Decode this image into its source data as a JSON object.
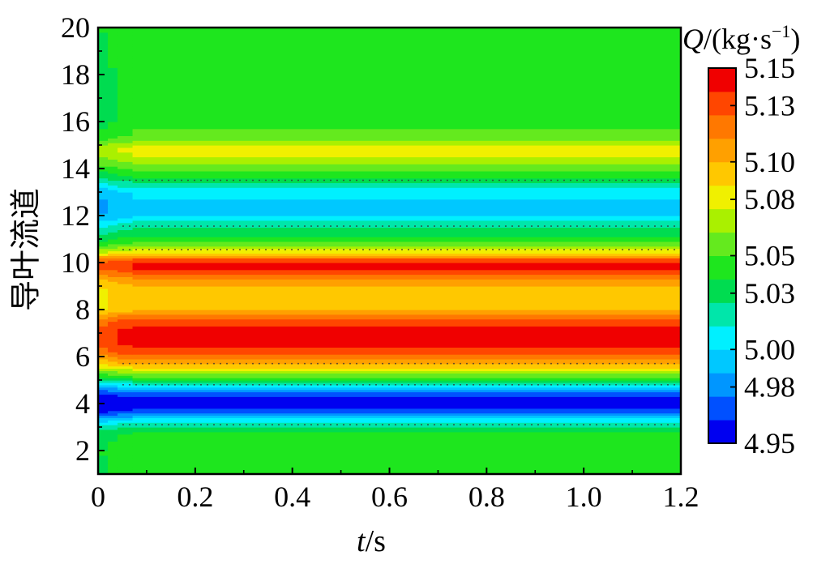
{
  "chart_data": {
    "type": "heatmap",
    "xlabel_var": "t",
    "xlabel_unit": "/s",
    "ylabel": "导叶流道",
    "xlim": [
      0,
      1.2
    ],
    "ylim": [
      1,
      20
    ],
    "x_ticks": [
      "0",
      "0.2",
      "0.4",
      "0.6",
      "0.8",
      "1.0",
      "1.2"
    ],
    "y_ticks": [
      "2",
      "4",
      "6",
      "8",
      "10",
      "12",
      "14",
      "16",
      "18",
      "20"
    ],
    "colorbar": {
      "title_var": "Q",
      "title_unit": "/(kg·s",
      "title_sup": "−1",
      "title_close": ")",
      "tick_labels": [
        "5.15",
        "5.13",
        "5.10",
        "5.08",
        "5.05",
        "5.03",
        "5.00",
        "4.98",
        "4.95"
      ],
      "min": 4.95,
      "max": 5.15,
      "levels": [
        {
          "value": 4.955,
          "color": "#0000f0"
        },
        {
          "value": 4.97,
          "color": "#0050ff"
        },
        {
          "value": 4.985,
          "color": "#0096ff"
        },
        {
          "value": 4.998,
          "color": "#00c8ff"
        },
        {
          "value": 5.01,
          "color": "#00f0ff"
        },
        {
          "value": 5.023,
          "color": "#00e6aa"
        },
        {
          "value": 5.036,
          "color": "#00dc50"
        },
        {
          "value": 5.049,
          "color": "#1ee61e"
        },
        {
          "value": 5.062,
          "color": "#64ea1e"
        },
        {
          "value": 5.075,
          "color": "#aaf000"
        },
        {
          "value": 5.088,
          "color": "#f0f000"
        },
        {
          "value": 5.1,
          "color": "#ffc800"
        },
        {
          "value": 5.113,
          "color": "#ffa000"
        },
        {
          "value": 5.126,
          "color": "#ff7800"
        },
        {
          "value": 5.139,
          "color": "#ff4600"
        },
        {
          "value": 5.15,
          "color": "#f00000"
        }
      ]
    },
    "y_profile": [
      {
        "y": 1.0,
        "Q": 5.052
      },
      {
        "y": 2.0,
        "Q": 5.055
      },
      {
        "y": 2.8,
        "Q": 5.045
      },
      {
        "y": 3.2,
        "Q": 5.02
      },
      {
        "y": 3.5,
        "Q": 4.99
      },
      {
        "y": 3.8,
        "Q": 4.958
      },
      {
        "y": 4.0,
        "Q": 4.952
      },
      {
        "y": 4.3,
        "Q": 4.962
      },
      {
        "y": 4.6,
        "Q": 4.992
      },
      {
        "y": 4.85,
        "Q": 5.02
      },
      {
        "y": 5.2,
        "Q": 5.062
      },
      {
        "y": 5.5,
        "Q": 5.09
      },
      {
        "y": 5.8,
        "Q": 5.115
      },
      {
        "y": 6.2,
        "Q": 5.14
      },
      {
        "y": 6.6,
        "Q": 5.15
      },
      {
        "y": 7.2,
        "Q": 5.15
      },
      {
        "y": 7.6,
        "Q": 5.135
      },
      {
        "y": 8.0,
        "Q": 5.105
      },
      {
        "y": 8.5,
        "Q": 5.102
      },
      {
        "y": 9.1,
        "Q": 5.108
      },
      {
        "y": 9.5,
        "Q": 5.132
      },
      {
        "y": 9.8,
        "Q": 5.148
      },
      {
        "y": 10.1,
        "Q": 5.142
      },
      {
        "y": 10.4,
        "Q": 5.095
      },
      {
        "y": 10.8,
        "Q": 5.06
      },
      {
        "y": 11.2,
        "Q": 5.04
      },
      {
        "y": 11.6,
        "Q": 5.025
      },
      {
        "y": 12.0,
        "Q": 5.004
      },
      {
        "y": 12.5,
        "Q": 5.002
      },
      {
        "y": 13.0,
        "Q": 5.006
      },
      {
        "y": 13.4,
        "Q": 5.03
      },
      {
        "y": 13.8,
        "Q": 5.052
      },
      {
        "y": 14.2,
        "Q": 5.07
      },
      {
        "y": 14.6,
        "Q": 5.085
      },
      {
        "y": 14.9,
        "Q": 5.088
      },
      {
        "y": 15.3,
        "Q": 5.062
      },
      {
        "y": 16.0,
        "Q": 5.05
      },
      {
        "y": 17.0,
        "Q": 5.048
      },
      {
        "y": 18.0,
        "Q": 5.05
      },
      {
        "y": 19.0,
        "Q": 5.052
      },
      {
        "y": 20.0,
        "Q": 5.055
      }
    ],
    "startup_transient": {
      "t_end": 0.07,
      "q_offset_at_start": -0.012
    },
    "dotted_contours_y": [
      3.1,
      4.8,
      5.7,
      10.55,
      11.55,
      13.5
    ],
    "grid": false,
    "legend": "colorbar-right"
  }
}
